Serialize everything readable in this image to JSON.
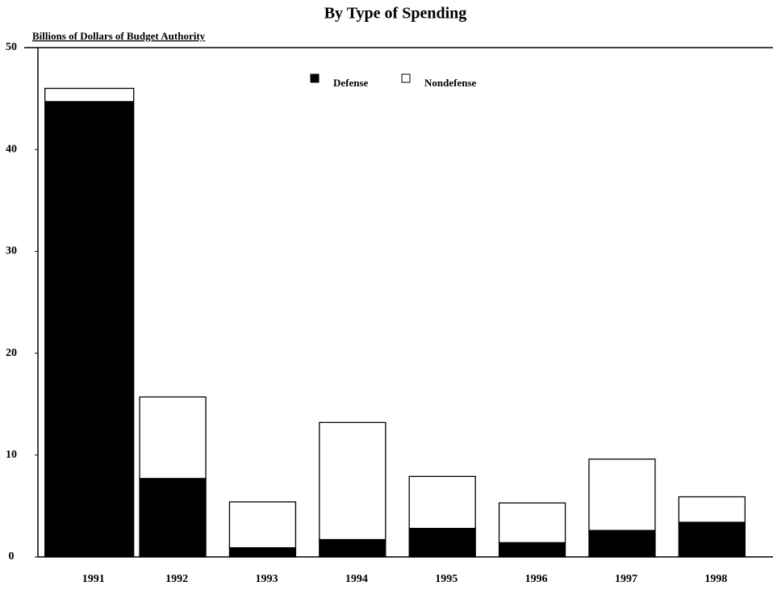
{
  "chart_data": {
    "type": "stacked_bar",
    "title": "By Type of Spending",
    "y_label": "Billions of Dollars of Budget Authority",
    "categories": [
      "1991",
      "1992",
      "1993",
      "1994",
      "1995",
      "1996",
      "1997",
      "1998"
    ],
    "series": [
      {
        "name": "Defense",
        "color": "#000000",
        "values": [
          44.7,
          7.7,
          0.9,
          1.7,
          2.8,
          1.4,
          2.6,
          3.4
        ]
      },
      {
        "name": "Nondefense",
        "color": "#ffffff",
        "values": [
          1.3,
          8.0,
          4.5,
          11.5,
          5.1,
          3.9,
          7.0,
          2.5
        ]
      }
    ],
    "ylim": [
      0,
      50
    ],
    "yticks": [
      0,
      10,
      20,
      30,
      40,
      50
    ],
    "grid": false,
    "legend": "top"
  }
}
